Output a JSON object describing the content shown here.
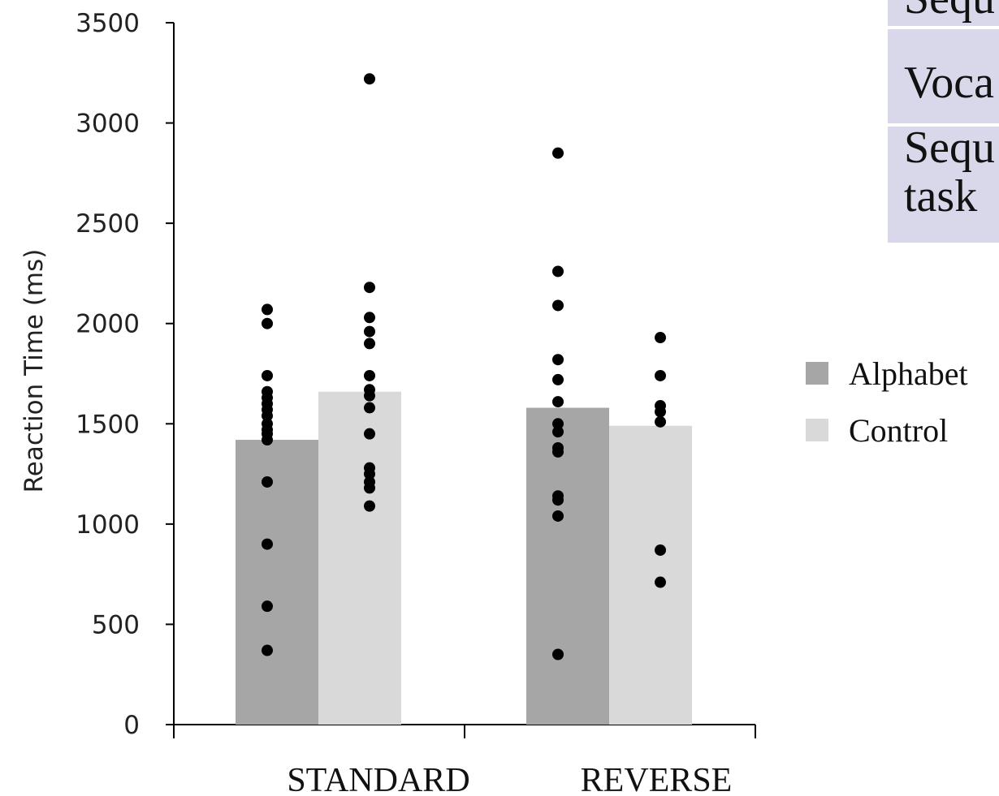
{
  "chart_data": {
    "type": "bar",
    "title": "",
    "xlabel": "",
    "ylabel": "Reaction Time (ms)",
    "ylim": [
      0,
      3500
    ],
    "yticks": [
      0,
      500,
      1000,
      1500,
      2000,
      2500,
      3000,
      3500
    ],
    "categories": [
      "STANDARD",
      "REVERSE"
    ],
    "series": [
      {
        "name": "Alphabet",
        "color": "#a6a6a6",
        "values": [
          1420,
          1580
        ],
        "points": [
          [
            2070,
            2000,
            1740,
            1660,
            1630,
            1600,
            1570,
            1540,
            1500,
            1470,
            1450,
            1420,
            1210,
            900,
            590,
            370
          ],
          [
            2850,
            2260,
            2090,
            1820,
            1720,
            1610,
            1500,
            1460,
            1380,
            1360,
            1140,
            1120,
            1040,
            350
          ]
        ]
      },
      {
        "name": "Control",
        "color": "#d9d9d9",
        "values": [
          1660,
          1490
        ],
        "points": [
          [
            3220,
            2180,
            2030,
            1960,
            1900,
            1740,
            1670,
            1640,
            1580,
            1450,
            1280,
            1250,
            1210,
            1180,
            1090
          ],
          [
            1930,
            1740,
            1590,
            1560,
            1510,
            870,
            710
          ]
        ]
      }
    ],
    "legend": {
      "placement": "right"
    }
  },
  "overlay_table": {
    "rows": [
      "Sequ",
      "Voca",
      "Sequ",
      "task"
    ],
    "background": "#d8d8ea"
  }
}
